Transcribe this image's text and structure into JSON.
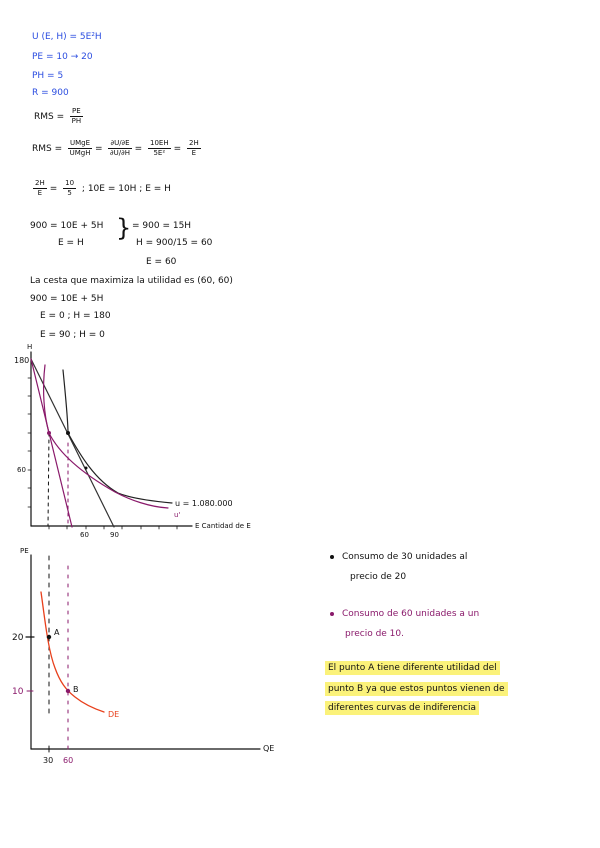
{
  "givens": {
    "utility": "U (E, H) = 5E²H",
    "pe": "PE = 10 → 20",
    "ph": "PH = 5",
    "r": "R = 900"
  },
  "rms_def": {
    "label": "RMS =",
    "num": "PE",
    "den": "PH"
  },
  "rms_calc": {
    "label": "RMS =",
    "f1_num": "UMgE",
    "f1_den": "UMgH",
    "f2_num": "∂U/∂E",
    "f2_den": "∂U/∂H",
    "f3_num": "10EH",
    "f3_den": "5E²",
    "f4_num": "2H",
    "f4_den": "E"
  },
  "equality": {
    "f1_num": "2H",
    "f1_den": "E",
    "f2_num": "10",
    "f2_den": "5",
    "rest": "; 10E = 10H ; E = H"
  },
  "system": {
    "eq1": "900 = 10E + 5H",
    "eq2": "E = H",
    "res1": "= 900 = 15H",
    "res2": "H = 900/15 = 60",
    "res3": "E = 60"
  },
  "conclusion": "La cesta que maximiza la utilidad es (60, 60)",
  "budget": {
    "eq": "900 = 10E + 5H",
    "p1": "E = 0 ; H = 180",
    "p2": "E = 90 ; H = 0"
  },
  "graph1": {
    "y_label": "H",
    "x_label": "E  Cantidad de E",
    "y_ticks": [
      "180",
      "60"
    ],
    "x_ticks": [
      "60",
      "90"
    ],
    "curve_label_1": "u = 1.080.000",
    "curve_label_2": "u'"
  },
  "graph2": {
    "y_label": "PE",
    "x_label": "QE",
    "y_ticks": [
      "20",
      "10"
    ],
    "x_ticks": [
      "30",
      "60"
    ],
    "point_a": "A",
    "point_b": "B",
    "demand_label": "DE"
  },
  "notes": {
    "bullet1_line1": "Consumo de 30 unidades al",
    "bullet1_line2": "precio de 20",
    "bullet2_line1": "Consumo de 60 unidades a un",
    "bullet2_line2": "precio de 10.",
    "highlight_line1": "El punto A tiene diferente utilidad del",
    "highlight_line2": "punto B ya que estos puntos vienen de",
    "highlight_line3": "diferentes curvas de indiferencia"
  },
  "colors": {
    "blue": "#2b4de0",
    "purple": "#8a1a6b",
    "demand": "#e8401c",
    "highlight": "#fbf27a"
  }
}
